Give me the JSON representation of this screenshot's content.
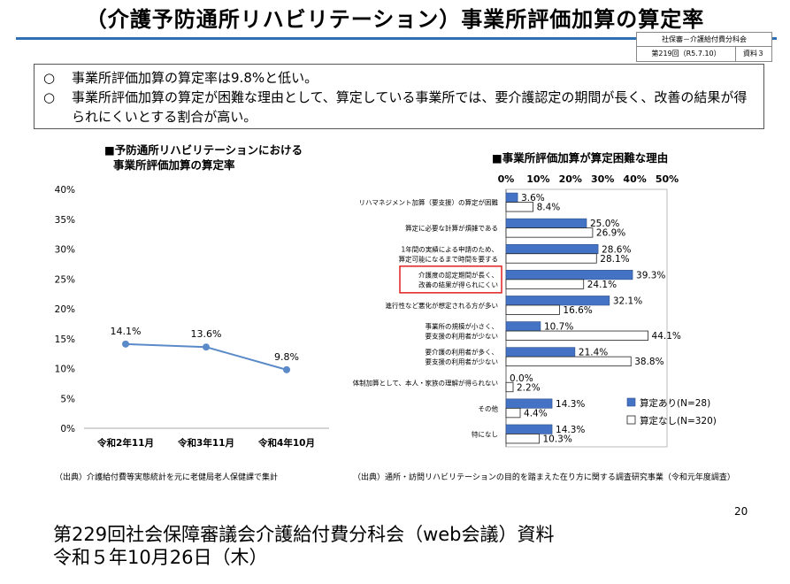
{
  "header": {
    "title": "（介護予防通所リハビリテーション）事業所評価加算の算定率",
    "meta_line1": "社保審－介護給付費分科会",
    "meta_session": "第219回（R5.7.10）",
    "meta_doc": "資料３"
  },
  "summary": [
    {
      "bullet": "○",
      "text": "事業所評価加算の算定率は9.8%と低い。"
    },
    {
      "bullet": "○",
      "text": "事業所評価加算の算定が困難な理由として、算定している事業所では、要介護認定の期間が長く、改善の結果が得られにくいとする割合が高い。"
    }
  ],
  "left_chart": {
    "title_line1": "■予防通所リハビリテーションにおける",
    "title_line2": "事業所評価加算の算定率",
    "source": "（出典）介護給付費等実態統計を元に老健局老人保健課で集計"
  },
  "right_chart": {
    "title": "■事業所評価加算が算定困難な理由",
    "source": "（出典）通所・訪問リハビリテーションの目的を踏まえた在り方に関する調査研究事業（令和元年度調査）"
  },
  "colors": {
    "accent": "#4472c4",
    "line": "#5b8ac8",
    "highlight": "#e02020",
    "rule": "#2f6fb3"
  },
  "chart_data": [
    {
      "type": "line",
      "categories": [
        "令和2年11月",
        "令和3年11月",
        "令和4年10月"
      ],
      "values": [
        14.1,
        13.6,
        9.8
      ],
      "value_labels": [
        "14.1%",
        "13.6%",
        "9.8%"
      ],
      "title": "■予防通所リハビリテーションにおける事業所評価加算の算定率",
      "ylim": [
        0,
        40
      ],
      "yticks": [
        "0%",
        "5%",
        "10%",
        "15%",
        "20%",
        "25%",
        "30%",
        "35%",
        "40%"
      ],
      "grid": false
    },
    {
      "type": "bar",
      "orientation": "horizontal",
      "title": "■事業所評価加算が算定困難な理由",
      "xlim": [
        0,
        50
      ],
      "xticks": [
        "0%",
        "10%",
        "20%",
        "30%",
        "40%",
        "50%"
      ],
      "legend_position": "bottom-right",
      "categories": [
        [
          "リハマネジメント加算（要支援）の算定が困難"
        ],
        [
          "算定に必要な計算が煩雑である"
        ],
        [
          "1年間の実績による申請のため、",
          "算定可能になるまで時間を要する"
        ],
        [
          "介護度の認定期間が長く、",
          "改善の結果が得られにくい"
        ],
        [
          "進行性など悪化が想定される方が多い"
        ],
        [
          "事業所の規模が小さく、",
          "要支援の利用者が少ない"
        ],
        [
          "要介護の利用者が多く、",
          "要支援の利用者が少ない"
        ],
        [
          "体制加算として、本人・家族の理解が得られない"
        ],
        [
          "その他"
        ],
        [
          "特になし"
        ]
      ],
      "highlight_index": 3,
      "series": [
        {
          "name": "算定あり(N=28)",
          "values": [
            3.6,
            25.0,
            28.6,
            39.3,
            32.1,
            10.7,
            21.4,
            0.0,
            14.3,
            14.3
          ],
          "labels": [
            "3.6%",
            "25.0%",
            "28.6%",
            "39.3%",
            "32.1%",
            "10.7%",
            "21.4%",
            "0.0%",
            "14.3%",
            "14.3%"
          ]
        },
        {
          "name": "算定なし(N=320)",
          "values": [
            8.4,
            26.9,
            28.1,
            24.1,
            16.6,
            44.1,
            38.8,
            2.2,
            4.4,
            10.3
          ],
          "labels": [
            "8.4%",
            "26.9%",
            "28.1%",
            "24.1%",
            "16.6%",
            "44.1%",
            "38.8%",
            "2.2%",
            "4.4%",
            "10.3%"
          ]
        }
      ]
    }
  ],
  "page_number": "20",
  "footer": {
    "line1": "第229回社会保障審議会介護給付費分科会（web会議）資料",
    "line2": "令和５年10月26日（木）"
  }
}
